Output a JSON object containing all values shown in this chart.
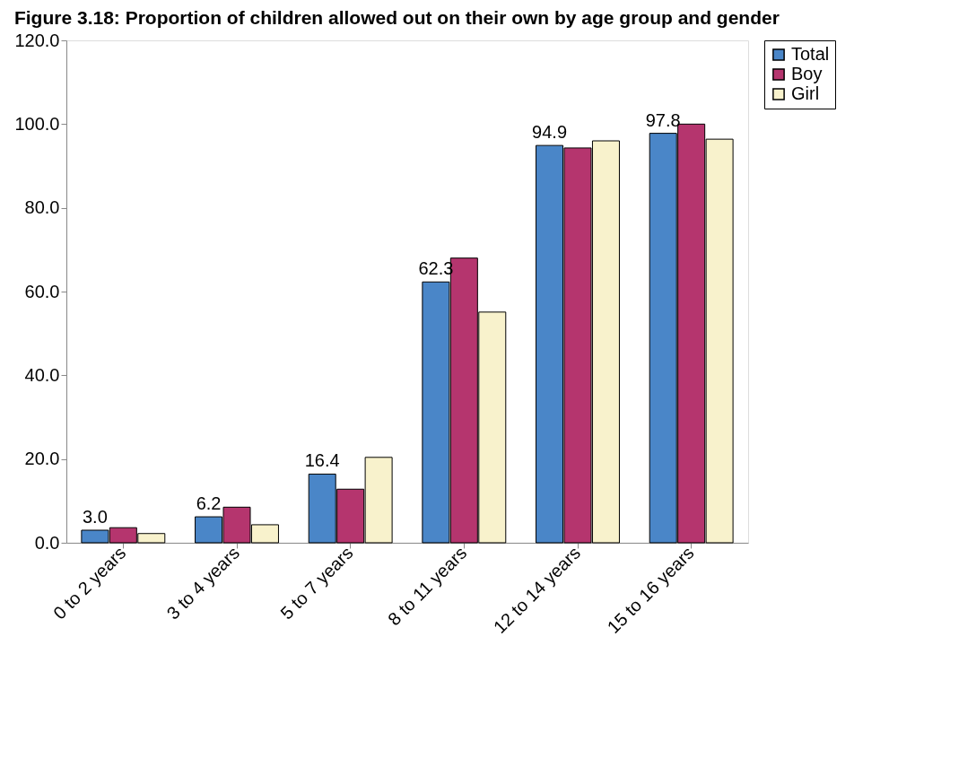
{
  "chart_data": {
    "type": "bar",
    "title": "Figure 3.18: Proportion of children allowed out on their own by age group and gender",
    "categories": [
      "0 to 2 years",
      "3 to 4 years",
      "5 to 7 years",
      "8 to 11 years",
      "12 to 14 years",
      "15 to 16 years"
    ],
    "series": [
      {
        "name": "Total",
        "color": "#4a86c8",
        "values": [
          3.0,
          6.2,
          16.4,
          62.3,
          94.9,
          97.8
        ],
        "value_labels": [
          "3.0",
          "6.2",
          "16.4",
          "62.3",
          "94.9",
          "97.8"
        ]
      },
      {
        "name": "Boy",
        "color": "#b5356e",
        "values": [
          3.6,
          8.5,
          12.8,
          68.0,
          94.3,
          100.0
        ]
      },
      {
        "name": "Girl",
        "color": "#f8f2cc",
        "values": [
          2.2,
          4.3,
          20.4,
          55.1,
          96.0,
          96.4
        ]
      }
    ],
    "ylim": [
      0,
      120
    ],
    "yticks": [
      {
        "value": 0,
        "label": "0.0"
      },
      {
        "value": 20,
        "label": "20.0"
      },
      {
        "value": 40,
        "label": "40.0"
      },
      {
        "value": 60,
        "label": "60.0"
      },
      {
        "value": 80,
        "label": "80.0"
      },
      {
        "value": 100,
        "label": "100.0"
      },
      {
        "value": 120,
        "label": "120.0"
      }
    ],
    "grid": false,
    "legend": "right"
  }
}
